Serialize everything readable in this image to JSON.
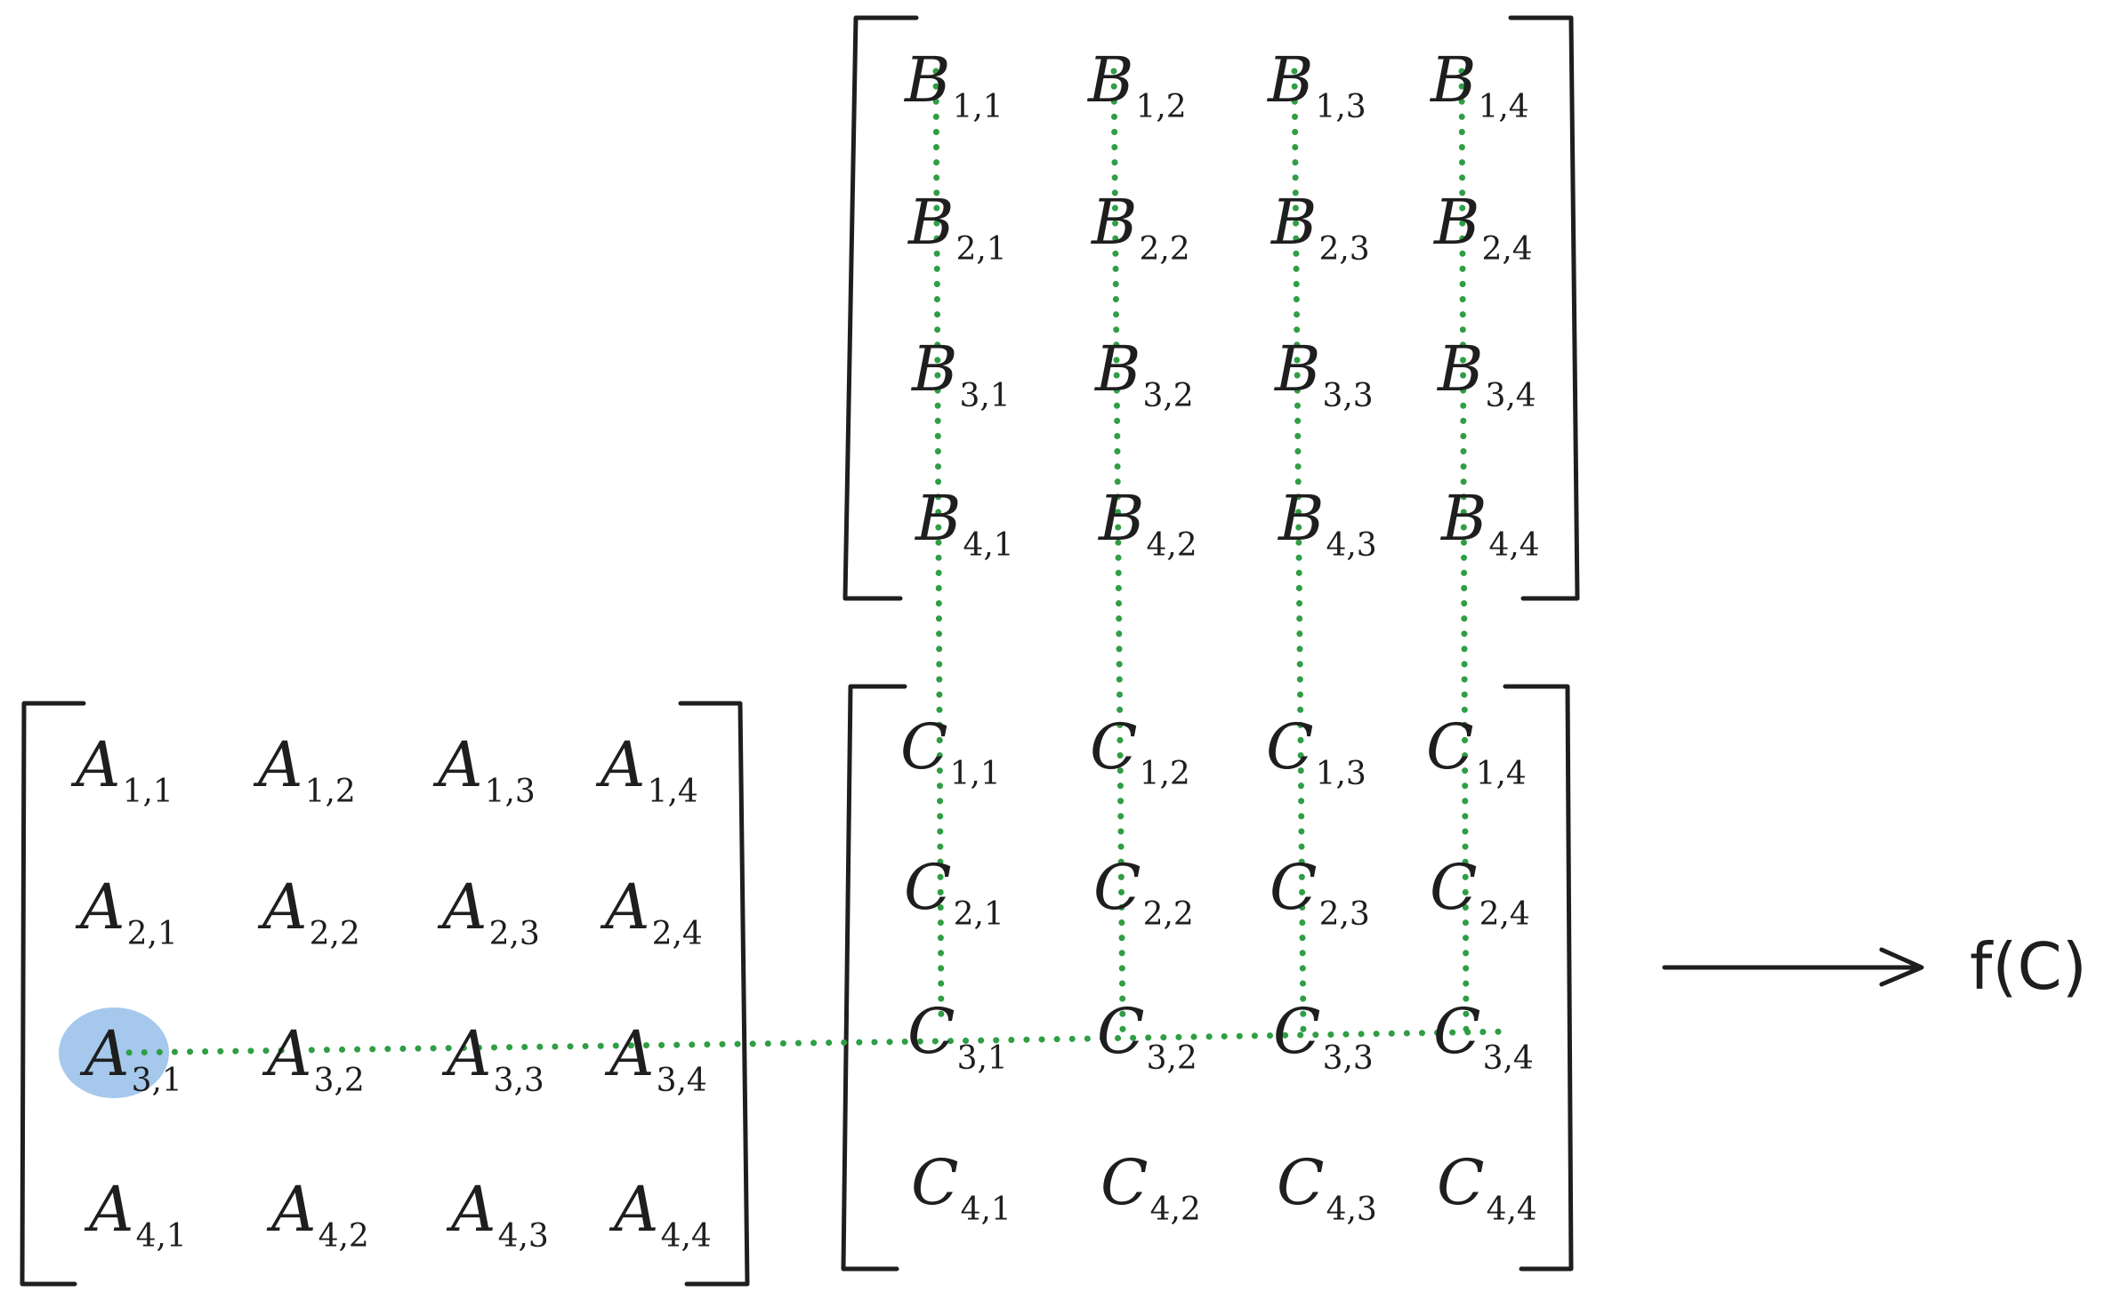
{
  "matrices": {
    "A": {
      "symbol": "A",
      "cells": [
        [
          "1,1",
          "1,2",
          "1,3",
          "1,4"
        ],
        [
          "2,1",
          "2,2",
          "2,3",
          "2,4"
        ],
        [
          "3,1",
          "3,2",
          "3,3",
          "3,4"
        ],
        [
          "4,1",
          "4,2",
          "4,3",
          "4,4"
        ]
      ]
    },
    "B": {
      "symbol": "B",
      "cells": [
        [
          "1,1",
          "1,2",
          "1,3",
          "1,4"
        ],
        [
          "2,1",
          "2,2",
          "2,3",
          "2,4"
        ],
        [
          "3,1",
          "3,2",
          "3,3",
          "3,4"
        ],
        [
          "4,1",
          "4,2",
          "4,3",
          "4,4"
        ]
      ]
    },
    "C": {
      "symbol": "C",
      "cells": [
        [
          "1,1",
          "1,2",
          "1,3",
          "1,4"
        ],
        [
          "2,1",
          "2,2",
          "2,3",
          "2,4"
        ],
        [
          "3,1",
          "3,2",
          "3,3",
          "3,4"
        ],
        [
          "4,1",
          "4,2",
          "4,3",
          "4,4"
        ]
      ]
    }
  },
  "highlight": {
    "matrix": "A",
    "row": 3,
    "col": 1
  },
  "output_label": "f(C)",
  "colors": {
    "ink": "#1e1e1e",
    "dotted_path": "#2f9e44",
    "highlight": "#a5c8ec"
  }
}
